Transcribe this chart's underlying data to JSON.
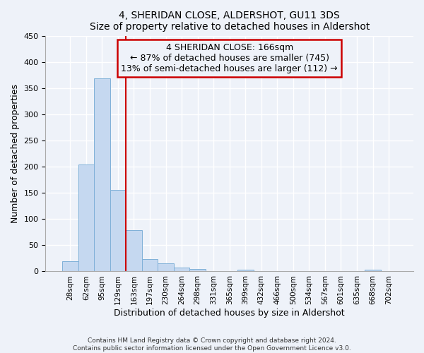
{
  "title": "4, SHERIDAN CLOSE, ALDERSHOT, GU11 3DS",
  "subtitle": "Size of property relative to detached houses in Aldershot",
  "xlabel": "Distribution of detached houses by size in Aldershot",
  "ylabel": "Number of detached properties",
  "bar_labels": [
    "28sqm",
    "62sqm",
    "95sqm",
    "129sqm",
    "163sqm",
    "197sqm",
    "230sqm",
    "264sqm",
    "298sqm",
    "331sqm",
    "365sqm",
    "399sqm",
    "432sqm",
    "466sqm",
    "500sqm",
    "534sqm",
    "567sqm",
    "601sqm",
    "635sqm",
    "668sqm",
    "702sqm"
  ],
  "bar_values": [
    20,
    204,
    368,
    156,
    79,
    23,
    16,
    8,
    5,
    0,
    0,
    3,
    0,
    0,
    0,
    0,
    0,
    0,
    0,
    3,
    0
  ],
  "bar_color": "#c5d8f0",
  "bar_edgecolor": "#7fb0d8",
  "vline_x": 4,
  "vline_color": "#cc0000",
  "annotation_title": "4 SHERIDAN CLOSE: 166sqm",
  "annotation_line1": "← 87% of detached houses are smaller (745)",
  "annotation_line2": "13% of semi-detached houses are larger (112) →",
  "annotation_box_color": "#cc0000",
  "ylim": [
    0,
    450
  ],
  "yticks": [
    0,
    50,
    100,
    150,
    200,
    250,
    300,
    350,
    400,
    450
  ],
  "footnote1": "Contains HM Land Registry data © Crown copyright and database right 2024.",
  "footnote2": "Contains public sector information licensed under the Open Government Licence v3.0.",
  "bg_color": "#eef2f9"
}
